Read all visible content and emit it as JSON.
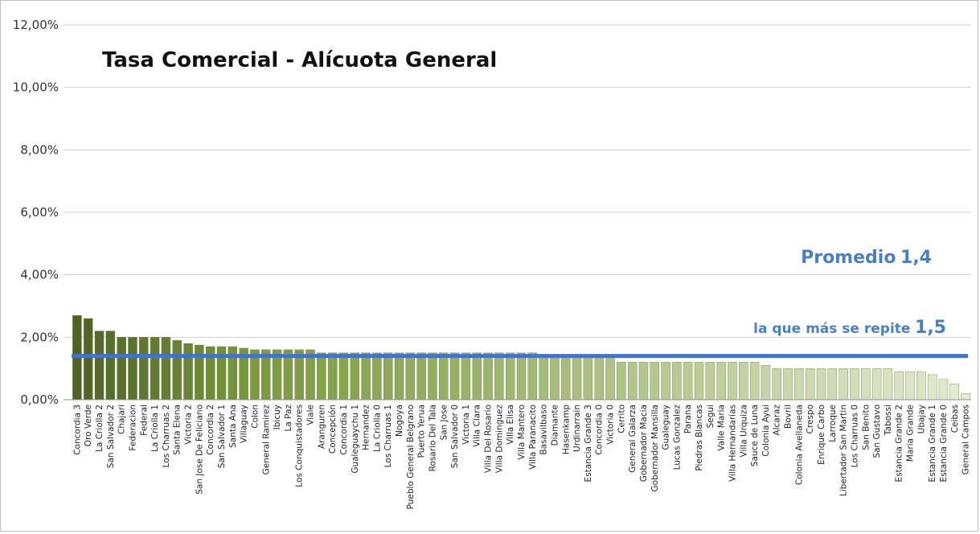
{
  "chart_data": {
    "type": "bar",
    "title": "Tasa Comercial - Alícuota General",
    "xlabel": "",
    "ylabel": "",
    "ylim": [
      0,
      12
    ],
    "y_ticks": [
      "0,00%",
      "2,00%",
      "4,00%",
      "6,00%",
      "8,00%",
      "10,00%",
      "12,00%"
    ],
    "grid": true,
    "legend": "none",
    "reference_line": {
      "value": 1.4,
      "color": "#4472c4"
    },
    "annotations": [
      {
        "label": "Promedio",
        "value": "1,4"
      },
      {
        "label": "la que más se repite",
        "value": "1,5"
      }
    ],
    "bar_colors": {
      "start": "#4f6228",
      "mid": "#7a9a3c",
      "end": "#e3ebcf"
    },
    "categories": [
      "Concordia 3",
      "Oro Verde",
      "La Criolla 2",
      "San Salvador 2",
      "Chajari",
      "Federacion",
      "Federal",
      "La Criolla 1",
      "Los Charruas 2",
      "Santa Elena",
      "Victoria 2",
      "San Jose De Feliciano",
      "Concordia 2",
      "San Salvador 1",
      "Santa Ana",
      "Villaguay",
      "Colon",
      "General Ramirez",
      "Ibicuy",
      "La Paz",
      "Los Conquistadores",
      "Viale",
      "Aranguren",
      "Concepción",
      "Concordia 1",
      "Gualeguaychu 1",
      "Hernandez",
      "La Criolla 0",
      "Los Charruas 1",
      "Nogoya",
      "Pueblo General Belgrano",
      "Puerto Yerua",
      "Rosario Del Tala",
      "San Jose",
      "San Salvador 0",
      "Victoria 1",
      "Villa Clara",
      "Villa Del Rosario",
      "Villa Dominguez",
      "Villa Elisa",
      "Villa Mantero",
      "Villa Paranacito",
      "Basavilbaso",
      "Diamante",
      "Hasenkamp",
      "Urdinarrain",
      "Estancia Grande 3",
      "Concordia 0",
      "Victoria 0",
      "Cerrito",
      "General Galarza",
      "Gobernador Macia",
      "Gobernador Mansilla",
      "Gualeguay",
      "Lucas Gonzalez",
      "Parana",
      "Piedras Blancas",
      "Segui",
      "Valle Maria",
      "Villa Hernandarias",
      "Villa Urquiza",
      "Sauce de Luna",
      "Colonia Ayui",
      "Alcaraz",
      "Bovril",
      "Colonia Avellaneda",
      "Crespo",
      "Enrique Carbo",
      "Larroque",
      "Libertador San Martin",
      "Los Charruas 0",
      "San Benito",
      "San Gustavo",
      "Tabossi",
      "Estancia Grande 2",
      "Maria Grande",
      "Ubajay",
      "Estancia Grande 1",
      "Estancia Grande 0",
      "Ceibas",
      "General Campos"
    ],
    "values": [
      2.7,
      2.6,
      2.2,
      2.2,
      2.0,
      2.0,
      2.0,
      2.0,
      2.0,
      1.9,
      1.8,
      1.75,
      1.7,
      1.7,
      1.7,
      1.65,
      1.6,
      1.6,
      1.6,
      1.6,
      1.6,
      1.6,
      1.5,
      1.5,
      1.5,
      1.5,
      1.5,
      1.5,
      1.5,
      1.5,
      1.5,
      1.5,
      1.5,
      1.5,
      1.5,
      1.5,
      1.5,
      1.5,
      1.5,
      1.5,
      1.5,
      1.5,
      1.4,
      1.4,
      1.4,
      1.4,
      1.4,
      1.4,
      1.4,
      1.2,
      1.2,
      1.2,
      1.2,
      1.2,
      1.2,
      1.2,
      1.2,
      1.2,
      1.2,
      1.2,
      1.2,
      1.2,
      1.1,
      1.0,
      1.0,
      1.0,
      1.0,
      1.0,
      1.0,
      1.0,
      1.0,
      1.0,
      1.0,
      1.0,
      0.9,
      0.9,
      0.9,
      0.8,
      0.65,
      0.5,
      0.2
    ]
  }
}
